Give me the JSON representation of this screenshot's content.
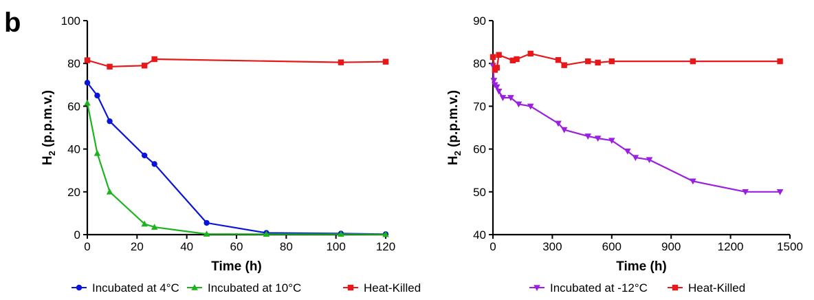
{
  "panel_label": "b",
  "chart_data": [
    {
      "type": "line",
      "xlabel": "Time (h)",
      "ylabel_main": "H",
      "ylabel_sub": "2",
      "ylabel_rest": " (p.p.m.v.)",
      "xlim": [
        0,
        120
      ],
      "ylim": [
        0,
        100
      ],
      "xticks": [
        0,
        20,
        40,
        60,
        80,
        100,
        120
      ],
      "yticks": [
        0,
        20,
        40,
        60,
        80,
        100
      ],
      "grid": false,
      "legend_placement": "bottom",
      "series": [
        {
          "name": "Incubated at 4°C",
          "color": "#0a14d8",
          "marker": "circle",
          "x": [
            0,
            4,
            9,
            23,
            27,
            48,
            72,
            102,
            120
          ],
          "y": [
            71,
            65,
            53,
            37,
            33,
            5.5,
            0.8,
            0.5,
            0.2
          ]
        },
        {
          "name": "Incubated at 10°C",
          "color": "#1db31d",
          "marker": "triangle-up",
          "x": [
            0,
            4,
            9,
            23,
            27,
            48,
            72,
            102,
            120
          ],
          "y": [
            61.5,
            38,
            20,
            5,
            3.5,
            0.3,
            0.2,
            0.2,
            0.1
          ]
        },
        {
          "name": "Heat-Killed",
          "color": "#e8171a",
          "marker": "square",
          "x": [
            0,
            9,
            23,
            27,
            102,
            120
          ],
          "y": [
            81.5,
            78.5,
            79,
            82,
            80.5,
            80.8
          ]
        }
      ]
    },
    {
      "type": "line",
      "xlabel": "Time (h)",
      "ylabel_main": "H",
      "ylabel_sub": "2",
      "ylabel_rest": " (p.p.m.v.)",
      "xlim": [
        0,
        1500
      ],
      "ylim": [
        40,
        90
      ],
      "xticks": [
        0,
        300,
        600,
        900,
        1200,
        1500
      ],
      "yticks": [
        40,
        50,
        60,
        70,
        80,
        90
      ],
      "grid": false,
      "legend_placement": "bottom",
      "series": [
        {
          "name": "Incubated at -12°C",
          "color": "#9b1fe0",
          "marker": "triangle-down",
          "x": [
            0,
            5,
            10,
            20,
            30,
            50,
            90,
            130,
            190,
            330,
            360,
            480,
            530,
            600,
            680,
            720,
            790,
            1010,
            1275,
            1450
          ],
          "y": [
            79.5,
            76,
            75,
            74.5,
            73.5,
            72,
            72,
            70.5,
            70,
            66,
            64.5,
            63,
            62.5,
            62,
            59.5,
            58,
            57.5,
            52.5,
            50,
            50
          ]
        },
        {
          "name": "Heat-Killed",
          "color": "#e8171a",
          "marker": "square",
          "x": [
            0,
            10,
            20,
            30,
            100,
            120,
            190,
            330,
            360,
            480,
            530,
            600,
            1010,
            1450
          ],
          "y": [
            81.5,
            78.5,
            79,
            82,
            80.7,
            81,
            82.3,
            80.8,
            79.6,
            80.5,
            80.2,
            80.5,
            80.5,
            80.5
          ]
        }
      ]
    }
  ]
}
